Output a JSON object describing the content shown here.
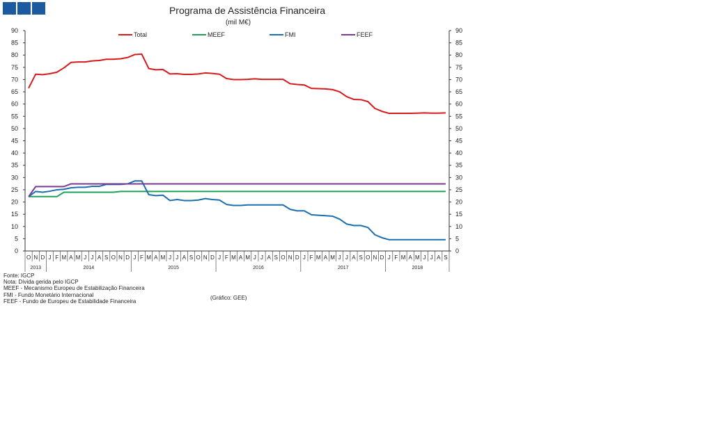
{
  "header": {
    "logo_icon": "institution-logo-icon",
    "title": "Programa  de Assistência Financeira",
    "subtitle": "(mil M€)"
  },
  "chart_data": {
    "type": "line",
    "title": "Programa  de Assistência Financeira",
    "subtitle": "(mil M€)",
    "ylim": [
      0,
      90
    ],
    "yticks": [
      "0",
      "5",
      "10",
      "15",
      "20",
      "25",
      "30",
      "35",
      "40",
      "45",
      "50",
      "55",
      "60",
      "65",
      "70",
      "75",
      "80",
      "85",
      "90"
    ],
    "secondary_y_axis": true,
    "grid": false,
    "legend_position": "top",
    "month_labels": [
      "O",
      "N",
      "D",
      "J",
      "F",
      "M",
      "A",
      "M",
      "J",
      "J",
      "A",
      "S",
      "O",
      "N",
      "D",
      "J",
      "F",
      "M",
      "A",
      "M",
      "J",
      "J",
      "A",
      "S",
      "O",
      "N",
      "D",
      "J",
      "F",
      "M",
      "A",
      "M",
      "J",
      "J",
      "A",
      "S",
      "O",
      "N",
      "D",
      "J",
      "F",
      "M",
      "A",
      "M",
      "J",
      "J",
      "A",
      "S",
      "O",
      "N",
      "D",
      "J",
      "F",
      "M",
      "A",
      "M",
      "J",
      "J",
      "A",
      "S"
    ],
    "years": [
      {
        "label": "2013",
        "start": 0,
        "end": 3
      },
      {
        "label": "2014",
        "start": 3,
        "end": 15
      },
      {
        "label": "2015",
        "start": 15,
        "end": 27
      },
      {
        "label": "2016",
        "start": 27,
        "end": 39
      },
      {
        "label": "2017",
        "start": 39,
        "end": 51
      },
      {
        "label": "2018",
        "start": 51,
        "end": 60
      }
    ],
    "series": [
      {
        "name": "Total",
        "color": "#d7191c",
        "values": [
          66.5,
          72.2,
          72.0,
          72.4,
          73.0,
          74.8,
          77.0,
          77.2,
          77.2,
          77.6,
          77.8,
          78.3,
          78.3,
          78.5,
          79.0,
          80.2,
          80.4,
          74.5,
          74.0,
          74.1,
          72.3,
          72.4,
          72.1,
          72.1,
          72.3,
          72.7,
          72.5,
          72.2,
          70.4,
          70.0,
          70.0,
          70.1,
          70.3,
          70.1,
          70.1,
          70.1,
          70.1,
          68.3,
          68.0,
          67.8,
          66.4,
          66.3,
          66.2,
          65.9,
          65.0,
          63.0,
          61.9,
          61.8,
          61.0,
          58.2,
          57.0,
          56.2,
          56.2,
          56.2,
          56.2,
          56.3,
          56.4,
          56.3,
          56.3,
          56.4
        ]
      },
      {
        "name": "MEEF",
        "color": "#1ea05a",
        "values": [
          22.2,
          22.2,
          22.2,
          22.2,
          22.2,
          24.0,
          24.0,
          24.0,
          24.0,
          24.0,
          24.0,
          24.0,
          24.0,
          24.3,
          24.3,
          24.3,
          24.3,
          24.3,
          24.3,
          24.3,
          24.3,
          24.3,
          24.3,
          24.3,
          24.3,
          24.3,
          24.3,
          24.3,
          24.3,
          24.3,
          24.3,
          24.3,
          24.3,
          24.3,
          24.3,
          24.3,
          24.3,
          24.3,
          24.3,
          24.3,
          24.3,
          24.3,
          24.3,
          24.3,
          24.3,
          24.3,
          24.3,
          24.3,
          24.3,
          24.3,
          24.3,
          24.3,
          24.3,
          24.3,
          24.3,
          24.3,
          24.3,
          24.3,
          24.3,
          24.3
        ]
      },
      {
        "name": "FMI",
        "color": "#1b6fae",
        "values": [
          22.2,
          24.3,
          24.0,
          24.4,
          25.0,
          25.2,
          25.8,
          26.0,
          26.0,
          26.4,
          26.4,
          27.2,
          27.2,
          27.2,
          27.4,
          28.6,
          28.6,
          23.0,
          22.6,
          22.8,
          20.6,
          21.0,
          20.6,
          20.6,
          20.8,
          21.4,
          21.0,
          20.8,
          19.0,
          18.6,
          18.6,
          18.8,
          18.8,
          18.8,
          18.8,
          18.8,
          18.8,
          17.0,
          16.4,
          16.4,
          14.8,
          14.6,
          14.4,
          14.2,
          13.0,
          11.0,
          10.4,
          10.4,
          9.6,
          6.6,
          5.4,
          4.6,
          4.6,
          4.6,
          4.6,
          4.6,
          4.6,
          4.6,
          4.6,
          4.6
        ]
      },
      {
        "name": "FEEF",
        "color": "#7b3a96",
        "values": [
          22.2,
          26.3,
          26.3,
          26.3,
          26.3,
          26.3,
          27.4,
          27.4,
          27.4,
          27.4,
          27.4,
          27.4,
          27.4,
          27.4,
          27.4,
          27.4,
          27.4,
          27.4,
          27.4,
          27.4,
          27.4,
          27.4,
          27.4,
          27.4,
          27.4,
          27.4,
          27.4,
          27.4,
          27.4,
          27.4,
          27.4,
          27.4,
          27.4,
          27.4,
          27.4,
          27.4,
          27.4,
          27.4,
          27.4,
          27.4,
          27.4,
          27.4,
          27.4,
          27.4,
          27.4,
          27.4,
          27.4,
          27.4,
          27.4,
          27.4,
          27.4,
          27.4,
          27.4,
          27.4,
          27.4,
          27.4,
          27.4,
          27.4,
          27.4,
          27.4
        ]
      }
    ]
  },
  "notes": [
    "Fonte: IGCP",
    "Nota: Dívida gerida pelo IGCP",
    "MEEF - Mecanismo Europeu de Estabilização Financeira",
    "FMI - Fundo Monetário Internacional",
    "FEEF - Fundo de Europeu de Estabilidade Financeira"
  ],
  "credit": "(Gráfico: GEE)"
}
